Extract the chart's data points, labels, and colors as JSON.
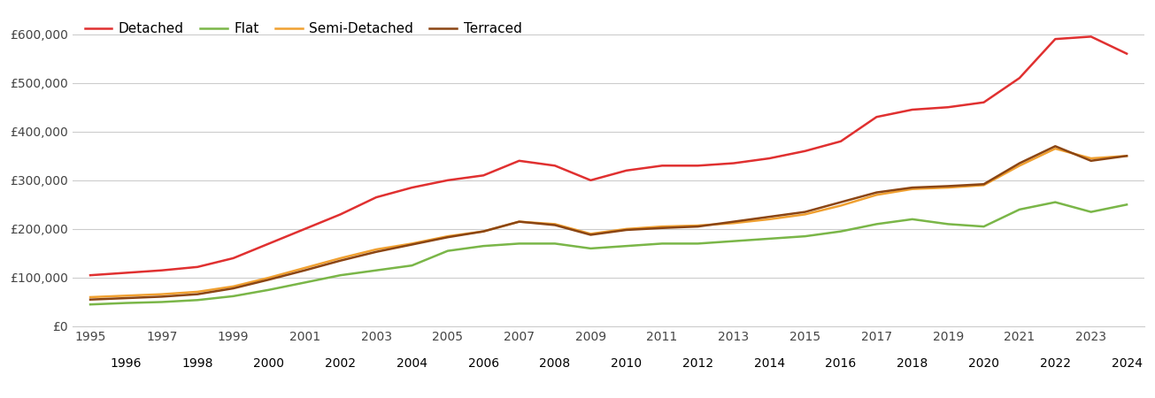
{
  "years": [
    1995,
    1996,
    1997,
    1998,
    1999,
    2000,
    2001,
    2002,
    2003,
    2004,
    2005,
    2006,
    2007,
    2008,
    2009,
    2010,
    2011,
    2012,
    2013,
    2014,
    2015,
    2016,
    2017,
    2018,
    2019,
    2020,
    2021,
    2022,
    2023,
    2024
  ],
  "detached": [
    105000,
    110000,
    115000,
    122000,
    140000,
    170000,
    200000,
    230000,
    265000,
    285000,
    300000,
    310000,
    340000,
    330000,
    300000,
    320000,
    330000,
    330000,
    335000,
    345000,
    360000,
    380000,
    430000,
    445000,
    450000,
    460000,
    510000,
    590000,
    595000,
    560000
  ],
  "flat": [
    45000,
    48000,
    50000,
    54000,
    62000,
    75000,
    90000,
    105000,
    115000,
    125000,
    155000,
    165000,
    170000,
    170000,
    160000,
    165000,
    170000,
    170000,
    175000,
    180000,
    185000,
    195000,
    210000,
    220000,
    210000,
    205000,
    240000,
    255000,
    235000,
    250000
  ],
  "semi_detached": [
    60000,
    63000,
    66000,
    71000,
    82000,
    100000,
    120000,
    140000,
    158000,
    170000,
    185000,
    195000,
    215000,
    210000,
    190000,
    200000,
    205000,
    207000,
    212000,
    220000,
    230000,
    248000,
    270000,
    282000,
    285000,
    290000,
    330000,
    365000,
    345000,
    350000
  ],
  "terraced": [
    55000,
    58000,
    61000,
    66000,
    78000,
    96000,
    115000,
    135000,
    153000,
    168000,
    183000,
    195000,
    215000,
    208000,
    188000,
    198000,
    202000,
    205000,
    215000,
    225000,
    235000,
    255000,
    275000,
    285000,
    288000,
    292000,
    335000,
    370000,
    340000,
    350000
  ],
  "colors": {
    "detached": "#e03030",
    "flat": "#7ab648",
    "semi_detached": "#f0a030",
    "terraced": "#8B4513"
  },
  "legend_labels": [
    "Detached",
    "Flat",
    "Semi-Detached",
    "Terraced"
  ],
  "ylim": [
    0,
    650000
  ],
  "yticks": [
    0,
    100000,
    200000,
    300000,
    400000,
    500000,
    600000
  ],
  "ytick_labels": [
    "£0",
    "£100,000",
    "£200,000",
    "£300,000",
    "£400,000",
    "£500,000",
    "£600,000"
  ],
  "background_color": "#ffffff",
  "plot_background": "#ffffff",
  "grid_color": "#cccccc",
  "line_width": 1.8,
  "tick_fontsize": 10,
  "legend_fontsize": 11
}
